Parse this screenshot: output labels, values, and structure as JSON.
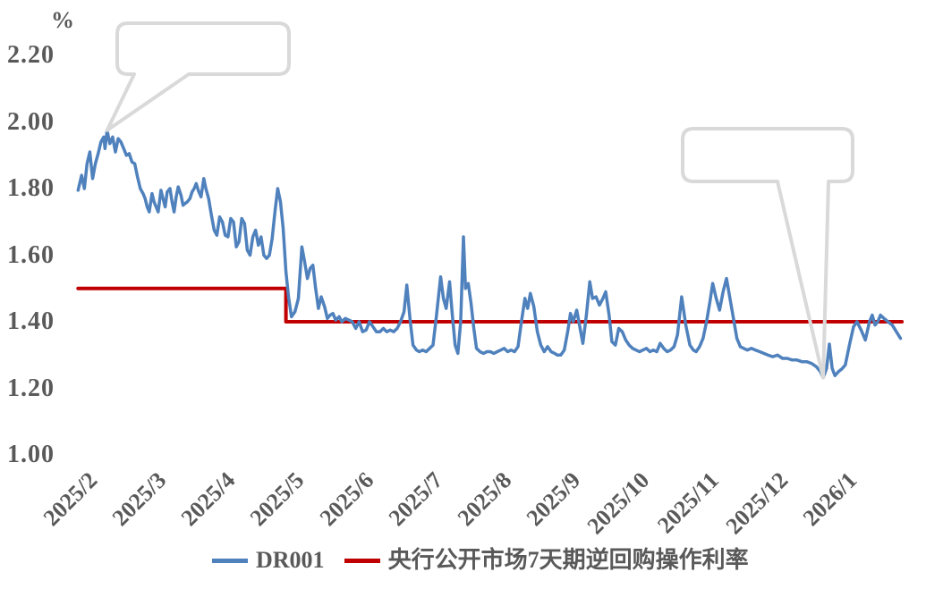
{
  "y_axis_unit_label": "%",
  "legend": {
    "items": [
      {
        "label": "DR001",
        "color": "#4F81BD"
      },
      {
        "label": "央行公开市场7天期逆回购操作利率",
        "color": "#C00000"
      }
    ]
  },
  "colors": {
    "dr001_line": "#4F81BD",
    "policy_rate_line": "#C00000",
    "axis_text": "#595959",
    "callout_outline": "#D9D9D9",
    "background": "#FFFFFF"
  },
  "chart_data": {
    "type": "line",
    "title": "",
    "xlabel": "",
    "ylabel": "%",
    "x_axis": {
      "tick_labels": [
        "2025/2",
        "2025/3",
        "2025/4",
        "2025/5",
        "2025/6",
        "2025/7",
        "2025/8",
        "2025/9",
        "2025/10",
        "2025/11",
        "2025/12",
        "2026/1"
      ],
      "note": "x coordinate of points = months after 2025-02-01 (fractional)"
    },
    "y_axis": {
      "tick_labels": [
        "1.00",
        "1.20",
        "1.40",
        "1.60",
        "1.80",
        "2.00",
        "2.20"
      ],
      "tick_values": [
        1.0,
        1.2,
        1.4,
        1.6,
        1.8,
        2.0,
        2.2
      ],
      "min": 1.0,
      "max": 2.2
    },
    "gridlines": false,
    "legend_position": "bottom",
    "series": [
      {
        "name": "DR001",
        "color": "#4F81BD",
        "points": [
          [
            0.03,
            1.795
          ],
          [
            0.08,
            1.84
          ],
          [
            0.12,
            1.8
          ],
          [
            0.16,
            1.875
          ],
          [
            0.2,
            1.91
          ],
          [
            0.24,
            1.83
          ],
          [
            0.28,
            1.875
          ],
          [
            0.32,
            1.905
          ],
          [
            0.36,
            1.94
          ],
          [
            0.4,
            1.955
          ],
          [
            0.42,
            1.92
          ],
          [
            0.45,
            1.975
          ],
          [
            0.49,
            1.935
          ],
          [
            0.53,
            1.955
          ],
          [
            0.57,
            1.91
          ],
          [
            0.61,
            1.95
          ],
          [
            0.65,
            1.94
          ],
          [
            0.69,
            1.92
          ],
          [
            0.73,
            1.9
          ],
          [
            0.77,
            1.905
          ],
          [
            0.81,
            1.88
          ],
          [
            0.85,
            1.875
          ],
          [
            0.89,
            1.835
          ],
          [
            0.93,
            1.8
          ],
          [
            0.97,
            1.785
          ],
          [
            1.0,
            1.77
          ],
          [
            1.03,
            1.745
          ],
          [
            1.06,
            1.73
          ],
          [
            1.1,
            1.785
          ],
          [
            1.13,
            1.76
          ],
          [
            1.16,
            1.745
          ],
          [
            1.19,
            1.73
          ],
          [
            1.23,
            1.795
          ],
          [
            1.26,
            1.77
          ],
          [
            1.29,
            1.745
          ],
          [
            1.32,
            1.79
          ],
          [
            1.36,
            1.8
          ],
          [
            1.39,
            1.76
          ],
          [
            1.42,
            1.73
          ],
          [
            1.45,
            1.775
          ],
          [
            1.48,
            1.805
          ],
          [
            1.52,
            1.78
          ],
          [
            1.55,
            1.75
          ],
          [
            1.58,
            1.755
          ],
          [
            1.61,
            1.76
          ],
          [
            1.65,
            1.77
          ],
          [
            1.68,
            1.79
          ],
          [
            1.71,
            1.8
          ],
          [
            1.74,
            1.815
          ],
          [
            1.77,
            1.795
          ],
          [
            1.81,
            1.775
          ],
          [
            1.85,
            1.83
          ],
          [
            1.88,
            1.8
          ],
          [
            1.92,
            1.77
          ],
          [
            1.96,
            1.72
          ],
          [
            2.0,
            1.675
          ],
          [
            2.04,
            1.66
          ],
          [
            2.08,
            1.715
          ],
          [
            2.12,
            1.7
          ],
          [
            2.16,
            1.66
          ],
          [
            2.2,
            1.655
          ],
          [
            2.24,
            1.71
          ],
          [
            2.28,
            1.7
          ],
          [
            2.32,
            1.625
          ],
          [
            2.36,
            1.64
          ],
          [
            2.4,
            1.71
          ],
          [
            2.44,
            1.695
          ],
          [
            2.48,
            1.615
          ],
          [
            2.52,
            1.6
          ],
          [
            2.56,
            1.655
          ],
          [
            2.6,
            1.675
          ],
          [
            2.64,
            1.63
          ],
          [
            2.68,
            1.655
          ],
          [
            2.72,
            1.6
          ],
          [
            2.76,
            1.59
          ],
          [
            2.8,
            1.6
          ],
          [
            2.84,
            1.65
          ],
          [
            2.88,
            1.73
          ],
          [
            2.92,
            1.8
          ],
          [
            2.96,
            1.76
          ],
          [
            3.0,
            1.68
          ],
          [
            3.04,
            1.55
          ],
          [
            3.08,
            1.47
          ],
          [
            3.12,
            1.415
          ],
          [
            3.17,
            1.43
          ],
          [
            3.22,
            1.47
          ],
          [
            3.27,
            1.625
          ],
          [
            3.31,
            1.58
          ],
          [
            3.35,
            1.53
          ],
          [
            3.39,
            1.56
          ],
          [
            3.43,
            1.57
          ],
          [
            3.47,
            1.5
          ],
          [
            3.51,
            1.44
          ],
          [
            3.55,
            1.475
          ],
          [
            3.6,
            1.445
          ],
          [
            3.64,
            1.41
          ],
          [
            3.68,
            1.42
          ],
          [
            3.72,
            1.425
          ],
          [
            3.76,
            1.405
          ],
          [
            3.81,
            1.415
          ],
          [
            3.85,
            1.4
          ],
          [
            3.9,
            1.41
          ],
          [
            3.95,
            1.405
          ],
          [
            4.0,
            1.4
          ],
          [
            4.05,
            1.38
          ],
          [
            4.1,
            1.4
          ],
          [
            4.15,
            1.37
          ],
          [
            4.2,
            1.375
          ],
          [
            4.25,
            1.4
          ],
          [
            4.3,
            1.385
          ],
          [
            4.35,
            1.37
          ],
          [
            4.4,
            1.37
          ],
          [
            4.45,
            1.38
          ],
          [
            4.5,
            1.37
          ],
          [
            4.55,
            1.375
          ],
          [
            4.6,
            1.37
          ],
          [
            4.65,
            1.38
          ],
          [
            4.7,
            1.4
          ],
          [
            4.75,
            1.43
          ],
          [
            4.79,
            1.51
          ],
          [
            4.84,
            1.4
          ],
          [
            4.88,
            1.33
          ],
          [
            4.93,
            1.315
          ],
          [
            4.97,
            1.31
          ],
          [
            5.02,
            1.315
          ],
          [
            5.07,
            1.31
          ],
          [
            5.12,
            1.32
          ],
          [
            5.17,
            1.33
          ],
          [
            5.22,
            1.42
          ],
          [
            5.28,
            1.535
          ],
          [
            5.32,
            1.47
          ],
          [
            5.36,
            1.44
          ],
          [
            5.41,
            1.52
          ],
          [
            5.45,
            1.42
          ],
          [
            5.49,
            1.33
          ],
          [
            5.53,
            1.305
          ],
          [
            5.57,
            1.4
          ],
          [
            5.61,
            1.655
          ],
          [
            5.64,
            1.5
          ],
          [
            5.68,
            1.515
          ],
          [
            5.72,
            1.455
          ],
          [
            5.76,
            1.38
          ],
          [
            5.8,
            1.32
          ],
          [
            5.85,
            1.31
          ],
          [
            5.9,
            1.305
          ],
          [
            5.95,
            1.31
          ],
          [
            6.0,
            1.31
          ],
          [
            6.05,
            1.305
          ],
          [
            6.1,
            1.31
          ],
          [
            6.15,
            1.315
          ],
          [
            6.2,
            1.32
          ],
          [
            6.25,
            1.31
          ],
          [
            6.3,
            1.315
          ],
          [
            6.35,
            1.31
          ],
          [
            6.4,
            1.325
          ],
          [
            6.45,
            1.4
          ],
          [
            6.5,
            1.47
          ],
          [
            6.54,
            1.44
          ],
          [
            6.58,
            1.485
          ],
          [
            6.63,
            1.445
          ],
          [
            6.68,
            1.37
          ],
          [
            6.73,
            1.33
          ],
          [
            6.78,
            1.31
          ],
          [
            6.83,
            1.325
          ],
          [
            6.88,
            1.31
          ],
          [
            6.93,
            1.305
          ],
          [
            6.97,
            1.3
          ],
          [
            7.02,
            1.3
          ],
          [
            7.07,
            1.315
          ],
          [
            7.12,
            1.37
          ],
          [
            7.16,
            1.425
          ],
          [
            7.2,
            1.4
          ],
          [
            7.25,
            1.435
          ],
          [
            7.3,
            1.38
          ],
          [
            7.34,
            1.335
          ],
          [
            7.39,
            1.42
          ],
          [
            7.44,
            1.52
          ],
          [
            7.48,
            1.47
          ],
          [
            7.53,
            1.475
          ],
          [
            7.58,
            1.45
          ],
          [
            7.63,
            1.47
          ],
          [
            7.67,
            1.49
          ],
          [
            7.72,
            1.42
          ],
          [
            7.76,
            1.34
          ],
          [
            7.81,
            1.33
          ],
          [
            7.86,
            1.38
          ],
          [
            7.91,
            1.37
          ],
          [
            7.96,
            1.345
          ],
          [
            8.01,
            1.33
          ],
          [
            8.06,
            1.32
          ],
          [
            8.11,
            1.315
          ],
          [
            8.16,
            1.31
          ],
          [
            8.21,
            1.315
          ],
          [
            8.26,
            1.32
          ],
          [
            8.31,
            1.31
          ],
          [
            8.36,
            1.315
          ],
          [
            8.41,
            1.31
          ],
          [
            8.46,
            1.335
          ],
          [
            8.51,
            1.32
          ],
          [
            8.56,
            1.31
          ],
          [
            8.61,
            1.315
          ],
          [
            8.66,
            1.325
          ],
          [
            8.71,
            1.36
          ],
          [
            8.77,
            1.475
          ],
          [
            8.83,
            1.39
          ],
          [
            8.89,
            1.33
          ],
          [
            8.94,
            1.315
          ],
          [
            8.98,
            1.31
          ],
          [
            9.03,
            1.325
          ],
          [
            9.08,
            1.35
          ],
          [
            9.13,
            1.4
          ],
          [
            9.18,
            1.46
          ],
          [
            9.22,
            1.515
          ],
          [
            9.27,
            1.47
          ],
          [
            9.32,
            1.435
          ],
          [
            9.37,
            1.49
          ],
          [
            9.42,
            1.53
          ],
          [
            9.47,
            1.47
          ],
          [
            9.52,
            1.41
          ],
          [
            9.57,
            1.35
          ],
          [
            9.62,
            1.325
          ],
          [
            9.67,
            1.32
          ],
          [
            9.72,
            1.315
          ],
          [
            9.78,
            1.32
          ],
          [
            9.84,
            1.315
          ],
          [
            9.9,
            1.31
          ],
          [
            9.96,
            1.305
          ],
          [
            10.02,
            1.3
          ],
          [
            10.09,
            1.295
          ],
          [
            10.16,
            1.3
          ],
          [
            10.23,
            1.29
          ],
          [
            10.3,
            1.29
          ],
          [
            10.37,
            1.285
          ],
          [
            10.44,
            1.285
          ],
          [
            10.51,
            1.28
          ],
          [
            10.58,
            1.28
          ],
          [
            10.65,
            1.275
          ],
          [
            10.72,
            1.265
          ],
          [
            10.78,
            1.25
          ],
          [
            10.82,
            1.232
          ],
          [
            10.87,
            1.26
          ],
          [
            10.91,
            1.333
          ],
          [
            10.95,
            1.26
          ],
          [
            10.99,
            1.238
          ],
          [
            11.04,
            1.25
          ],
          [
            11.09,
            1.258
          ],
          [
            11.14,
            1.27
          ],
          [
            11.2,
            1.33
          ],
          [
            11.26,
            1.385
          ],
          [
            11.31,
            1.4
          ],
          [
            11.37,
            1.375
          ],
          [
            11.43,
            1.345
          ],
          [
            11.49,
            1.4
          ],
          [
            11.53,
            1.42
          ],
          [
            11.57,
            1.39
          ],
          [
            11.61,
            1.4
          ],
          [
            11.65,
            1.42
          ],
          [
            11.7,
            1.41
          ],
          [
            11.76,
            1.4
          ],
          [
            11.82,
            1.39
          ],
          [
            11.88,
            1.37
          ],
          [
            11.94,
            1.35
          ]
        ]
      },
      {
        "name": "央行公开市场7天期逆回购操作利率",
        "color": "#C00000",
        "points": [
          [
            0.03,
            1.5
          ],
          [
            3.04,
            1.5
          ],
          [
            3.04,
            1.4
          ],
          [
            11.96,
            1.4
          ]
        ]
      }
    ],
    "annotations": [
      {
        "type": "empty-callout-bubble",
        "label": "",
        "target_series": "DR001",
        "target": {
          "x": 0.45,
          "value": 1.975
        }
      },
      {
        "type": "empty-callout-bubble",
        "label": "",
        "target_series": "DR001",
        "target": {
          "x": 10.82,
          "value": 1.232
        }
      }
    ]
  }
}
